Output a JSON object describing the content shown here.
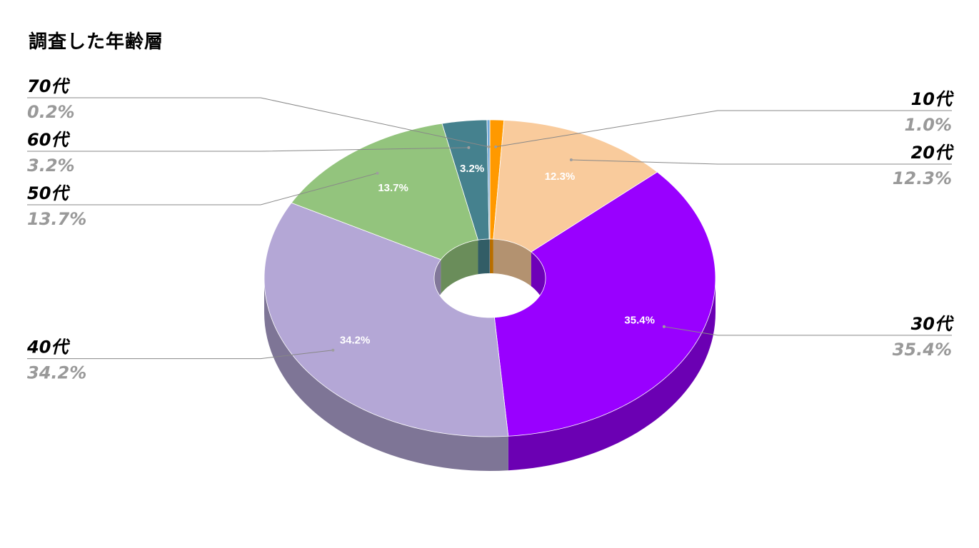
{
  "chart_data": {
    "type": "pie",
    "variant": "3d-donut",
    "title": "調査した年齢層",
    "start_angle_deg": 0,
    "direction": "clockwise",
    "legend": "none",
    "slices": [
      {
        "name": "10代",
        "value": 1.0,
        "label": "1.0%",
        "color": "#ff9900",
        "inner_label": ""
      },
      {
        "name": "20代",
        "value": 12.3,
        "label": "12.3%",
        "color": "#f9cb9c",
        "inner_label": "12.3%"
      },
      {
        "name": "30代",
        "value": 35.4,
        "label": "35.4%",
        "color": "#9900ff",
        "inner_label": "35.4%"
      },
      {
        "name": "40代",
        "value": 34.2,
        "label": "34.2%",
        "color": "#b4a7d6",
        "inner_label": "34.2%"
      },
      {
        "name": "50代",
        "value": 13.7,
        "label": "13.7%",
        "color": "#93c47d",
        "inner_label": "13.7%"
      },
      {
        "name": "60代",
        "value": 3.2,
        "label": "3.2%",
        "color": "#45818e",
        "inner_label": "3.2%"
      },
      {
        "name": "70代",
        "value": 0.2,
        "label": "0.2%",
        "color": "#6fa8dc",
        "inner_label": ""
      }
    ]
  }
}
